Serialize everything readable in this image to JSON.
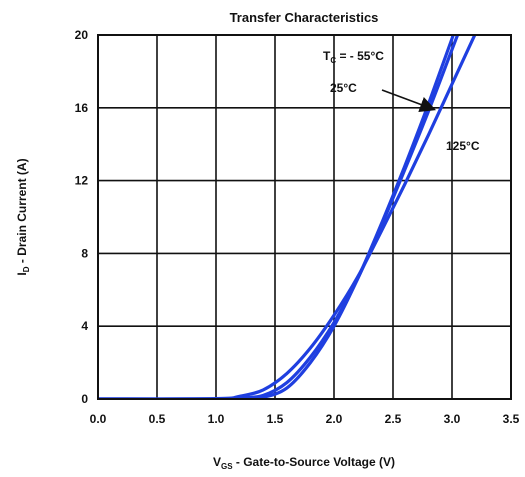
{
  "chart_data": {
    "type": "line",
    "title": "Transfer Characteristics",
    "xlabel": {
      "main": "V",
      "sub": "GS",
      "rest": " - Gate-to-Source Voltage (V)"
    },
    "ylabel": {
      "main": "I",
      "sub": "D",
      "rest": " - Drain Current (A)"
    },
    "xlim": [
      0.0,
      3.5
    ],
    "ylim": [
      0,
      20
    ],
    "x_ticks": [
      0.0,
      0.5,
      1.0,
      1.5,
      2.0,
      2.5,
      3.0,
      3.5
    ],
    "x_tick_labels": [
      "0.0",
      "0.5",
      "1.0",
      "1.5",
      "2.0",
      "2.5",
      "3.0",
      "3.5"
    ],
    "y_ticks": [
      0,
      4,
      8,
      12,
      16,
      20
    ],
    "y_tick_labels": [
      "0",
      "4",
      "8",
      "12",
      "16",
      "20"
    ],
    "grid": true,
    "line_color": "#1f3fe0",
    "series": [
      {
        "name": "T_C = -55°C",
        "x": [
          0.0,
          1.0,
          1.2,
          1.4,
          1.6,
          1.8,
          2.0,
          2.2,
          2.4,
          2.6,
          2.8,
          3.0,
          3.2
        ],
        "y": [
          0,
          0,
          0.02,
          0.1,
          0.6,
          2.0,
          4.0,
          6.6,
          9.6,
          12.8,
          16.2,
          19.8,
          23.6
        ]
      },
      {
        "name": "25°C",
        "x": [
          0.0,
          1.0,
          1.2,
          1.4,
          1.6,
          1.8,
          2.0,
          2.2,
          2.4,
          2.6,
          2.8,
          3.0,
          3.2
        ],
        "y": [
          0,
          0,
          0.05,
          0.2,
          0.9,
          2.3,
          4.2,
          6.6,
          9.5,
          12.6,
          15.8,
          19.2,
          22.6
        ]
      },
      {
        "name": "125°C",
        "x": [
          0.0,
          1.0,
          1.2,
          1.4,
          1.6,
          1.8,
          2.0,
          2.2,
          2.4,
          2.6,
          2.8,
          3.0,
          3.2,
          3.3
        ],
        "y": [
          0,
          0.02,
          0.15,
          0.5,
          1.4,
          2.8,
          4.6,
          6.7,
          9.2,
          11.8,
          14.5,
          17.3,
          20.1,
          21.5
        ]
      }
    ],
    "annotations": {
      "tc_label": {
        "main": "T",
        "sub": "C",
        "rest": " = - 55°C"
      },
      "label_25": "25°C",
      "label_125": "125°C"
    }
  }
}
